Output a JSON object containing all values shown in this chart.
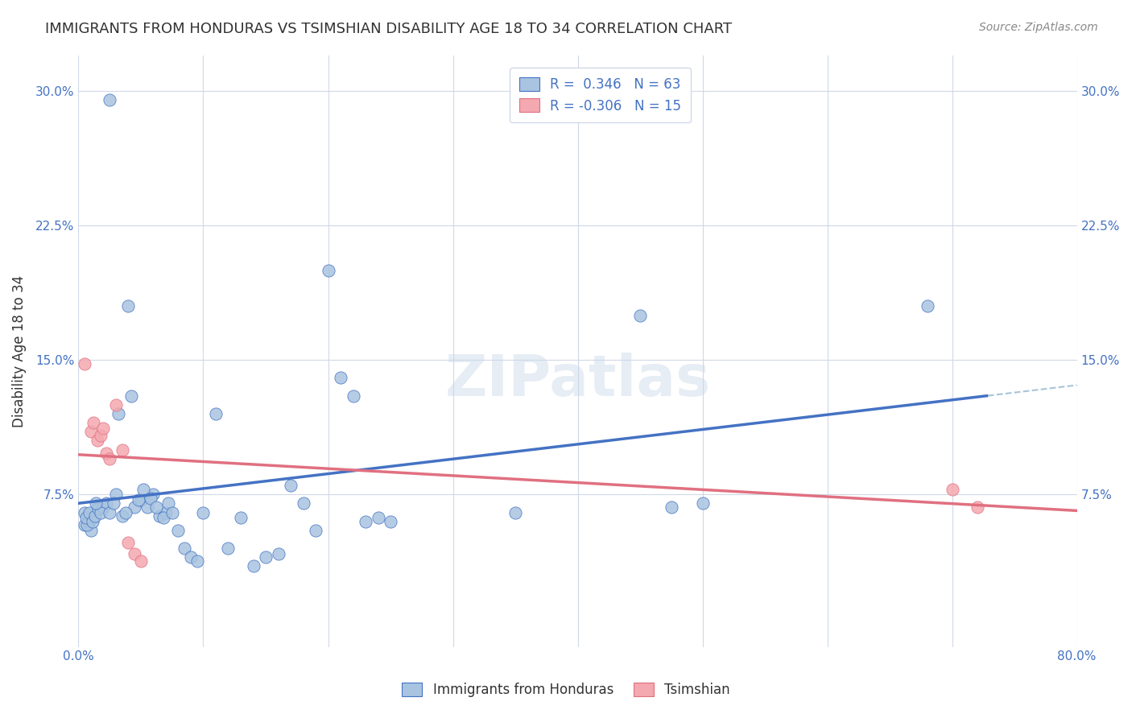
{
  "title": "IMMIGRANTS FROM HONDURAS VS TSIMSHIAN DISABILITY AGE 18 TO 34 CORRELATION CHART",
  "source": "Source: ZipAtlas.com",
  "ylabel": "Disability Age 18 to 34",
  "xlim": [
    0.0,
    0.8
  ],
  "ylim": [
    -0.01,
    0.32
  ],
  "xtick_positions": [
    0.0,
    0.1,
    0.2,
    0.3,
    0.4,
    0.5,
    0.6,
    0.7,
    0.8
  ],
  "xticklabels": [
    "0.0%",
    "",
    "",
    "",
    "",
    "",
    "",
    "",
    "80.0%"
  ],
  "ytick_positions": [
    0.075,
    0.15,
    0.225,
    0.3
  ],
  "ytick_labels": [
    "7.5%",
    "15.0%",
    "22.5%",
    "30.0%"
  ],
  "blue_color": "#a8c4e0",
  "pink_color": "#f4a8b0",
  "blue_line_color": "#4472c4",
  "pink_line_color": "#e07080",
  "dashed_line_color": "#a8c4d8",
  "watermark": "ZIPatlas",
  "blue_R": 0.346,
  "blue_N": 63,
  "pink_R": -0.306,
  "pink_N": 15,
  "blue_scatter_x": [
    0.025,
    0.005,
    0.005,
    0.008,
    0.012,
    0.015,
    0.01,
    0.007,
    0.006,
    0.009,
    0.011,
    0.013,
    0.016,
    0.02,
    0.022,
    0.018,
    0.014,
    0.03,
    0.035,
    0.025,
    0.04,
    0.045,
    0.05,
    0.038,
    0.042,
    0.028,
    0.032,
    0.055,
    0.06,
    0.065,
    0.07,
    0.048,
    0.052,
    0.058,
    0.062,
    0.068,
    0.072,
    0.075,
    0.08,
    0.085,
    0.09,
    0.095,
    0.1,
    0.11,
    0.12,
    0.13,
    0.14,
    0.15,
    0.16,
    0.17,
    0.18,
    0.19,
    0.2,
    0.21,
    0.22,
    0.23,
    0.24,
    0.25,
    0.35,
    0.45,
    0.475,
    0.5,
    0.68
  ],
  "blue_scatter_y": [
    0.295,
    0.065,
    0.058,
    0.06,
    0.062,
    0.068,
    0.055,
    0.058,
    0.062,
    0.065,
    0.06,
    0.063,
    0.067,
    0.068,
    0.07,
    0.065,
    0.07,
    0.075,
    0.063,
    0.065,
    0.18,
    0.068,
    0.072,
    0.065,
    0.13,
    0.07,
    0.12,
    0.068,
    0.075,
    0.063,
    0.065,
    0.072,
    0.078,
    0.073,
    0.068,
    0.062,
    0.07,
    0.065,
    0.055,
    0.045,
    0.04,
    0.038,
    0.065,
    0.12,
    0.045,
    0.062,
    0.035,
    0.04,
    0.042,
    0.08,
    0.07,
    0.055,
    0.2,
    0.14,
    0.13,
    0.06,
    0.062,
    0.06,
    0.065,
    0.175,
    0.068,
    0.07,
    0.18
  ],
  "pink_scatter_x": [
    0.005,
    0.01,
    0.012,
    0.015,
    0.018,
    0.02,
    0.022,
    0.025,
    0.03,
    0.035,
    0.04,
    0.045,
    0.05,
    0.7,
    0.72
  ],
  "pink_scatter_y": [
    0.148,
    0.11,
    0.115,
    0.105,
    0.108,
    0.112,
    0.098,
    0.095,
    0.125,
    0.1,
    0.048,
    0.042,
    0.038,
    0.078,
    0.068
  ]
}
